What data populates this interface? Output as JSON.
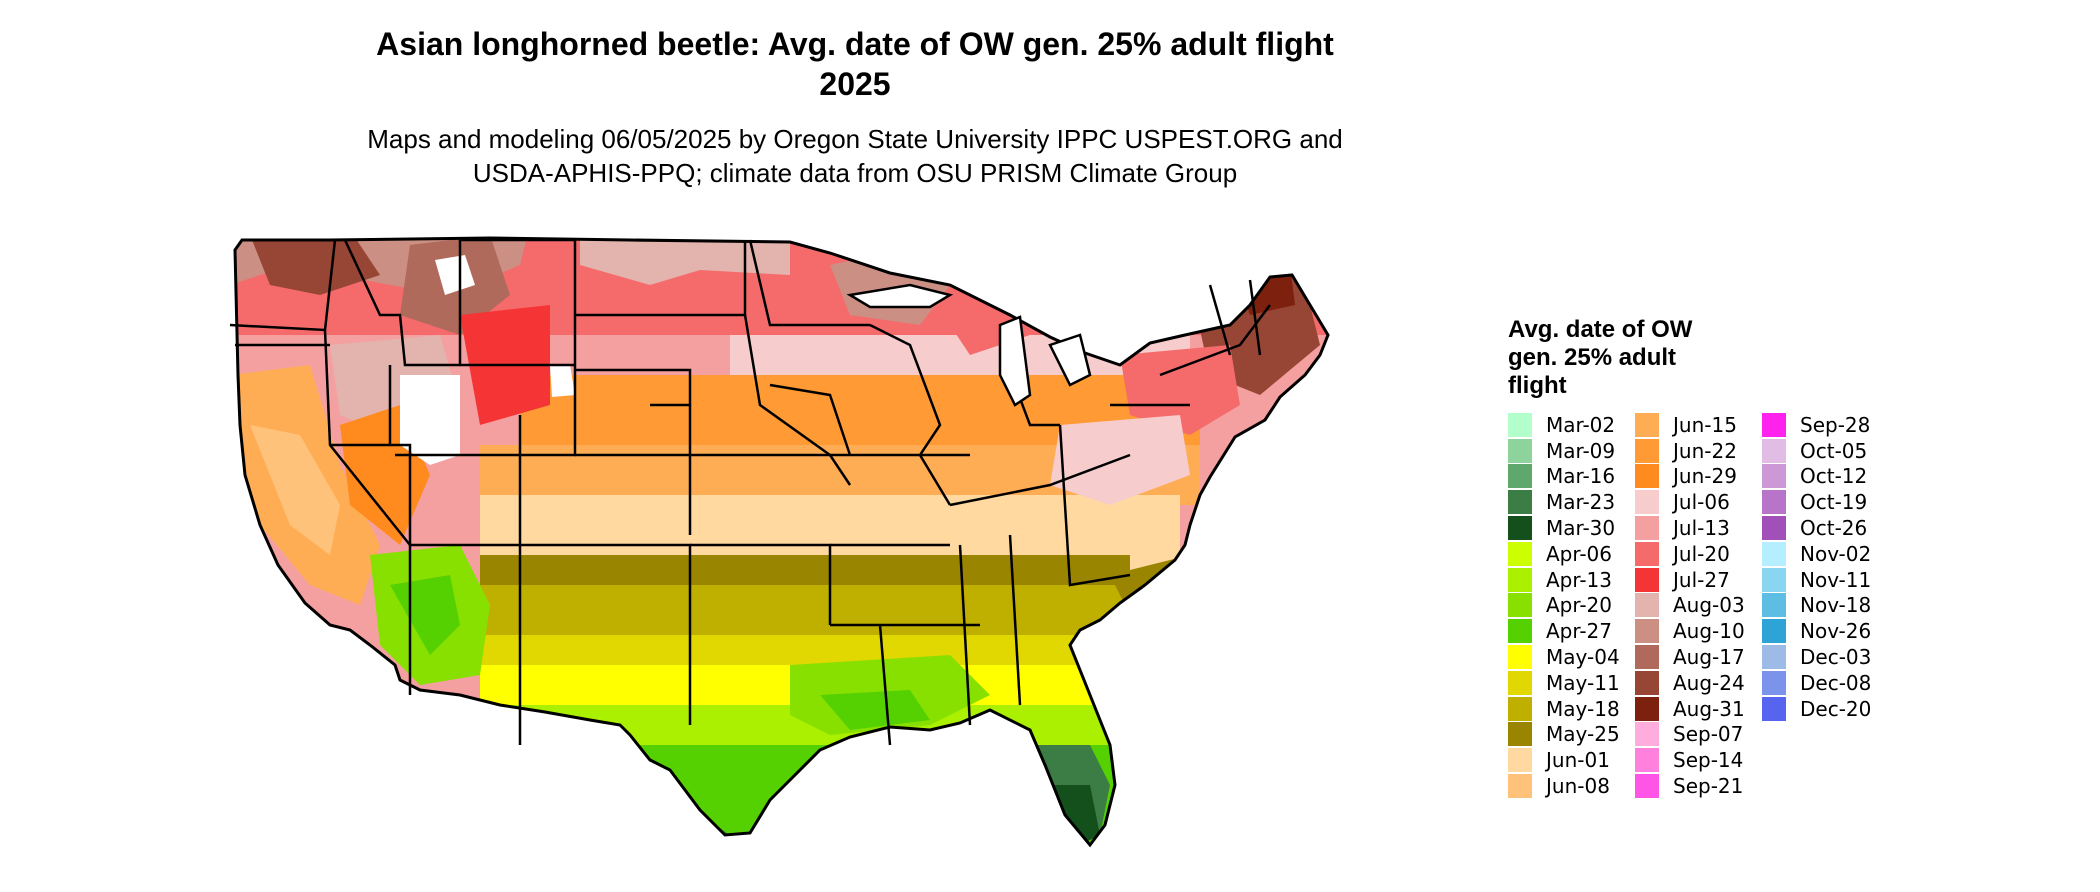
{
  "title": "Asian longhorned beetle: Avg. date of OW gen. 25% adult flight\n2025",
  "title_line1": "Asian longhorned beetle: Avg. date of OW gen. 25% adult flight",
  "title_line2": "2025",
  "subtitle_line1": "Maps and modeling 06/05/2025 by Oregon State University IPPC USPEST.ORG and",
  "subtitle_line2": "USDA-APHIS-PPQ; climate data from OSU PRISM Climate Group",
  "legend": {
    "title_lines": [
      "Avg. date of OW",
      "gen. 25% adult",
      "flight"
    ],
    "columns": [
      [
        {
          "label": "Mar-02",
          "color": "#b3ffcc"
        },
        {
          "label": "Mar-09",
          "color": "#8dd39b"
        },
        {
          "label": "Mar-16",
          "color": "#5fa86d"
        },
        {
          "label": "Mar-23",
          "color": "#3b7d44"
        },
        {
          "label": "Mar-30",
          "color": "#14501b"
        },
        {
          "label": "Apr-06",
          "color": "#ccff00"
        },
        {
          "label": "Apr-13",
          "color": "#aaf000"
        },
        {
          "label": "Apr-20",
          "color": "#88e000"
        },
        {
          "label": "Apr-27",
          "color": "#55d000"
        },
        {
          "label": "May-04",
          "color": "#ffff00"
        },
        {
          "label": "May-11",
          "color": "#e0d800"
        },
        {
          "label": "May-18",
          "color": "#bfb000"
        },
        {
          "label": "May-25",
          "color": "#9a8500"
        },
        {
          "label": "Jun-01",
          "color": "#ffd9a0"
        },
        {
          "label": "Jun-08",
          "color": "#ffc27a"
        }
      ],
      [
        {
          "label": "Jun-15",
          "color": "#ffad55"
        },
        {
          "label": "Jun-22",
          "color": "#ff9a35"
        },
        {
          "label": "Jun-29",
          "color": "#ff8a1e"
        },
        {
          "label": "Jul-06",
          "color": "#f7cccc"
        },
        {
          "label": "Jul-13",
          "color": "#f5a0a0"
        },
        {
          "label": "Jul-20",
          "color": "#f56b6b"
        },
        {
          "label": "Jul-27",
          "color": "#f53535"
        },
        {
          "label": "Aug-03",
          "color": "#e3b3ad"
        },
        {
          "label": "Aug-10",
          "color": "#cc8f84"
        },
        {
          "label": "Aug-17",
          "color": "#b06a5c"
        },
        {
          "label": "Aug-24",
          "color": "#974535"
        },
        {
          "label": "Aug-31",
          "color": "#7d200d"
        },
        {
          "label": "Sep-07",
          "color": "#ffaddc"
        },
        {
          "label": "Sep-14",
          "color": "#ff80dd"
        },
        {
          "label": "Sep-21",
          "color": "#ff55e6"
        }
      ],
      [
        {
          "label": "Sep-28",
          "color": "#ff22ee"
        },
        {
          "label": "Oct-05",
          "color": "#e1bde5"
        },
        {
          "label": "Oct-12",
          "color": "#cc98d6"
        },
        {
          "label": "Oct-19",
          "color": "#b874c9"
        },
        {
          "label": "Oct-26",
          "color": "#a14fb9"
        },
        {
          "label": "Nov-02",
          "color": "#b5eeff"
        },
        {
          "label": "Nov-11",
          "color": "#8ad5f0"
        },
        {
          "label": "Nov-18",
          "color": "#5dbde3"
        },
        {
          "label": "Nov-26",
          "color": "#2ea3d6"
        },
        {
          "label": "Dec-03",
          "color": "#9dbbe6"
        },
        {
          "label": "Dec-08",
          "color": "#7b93ea"
        },
        {
          "label": "Dec-20",
          "color": "#5764ef"
        }
      ]
    ]
  }
}
